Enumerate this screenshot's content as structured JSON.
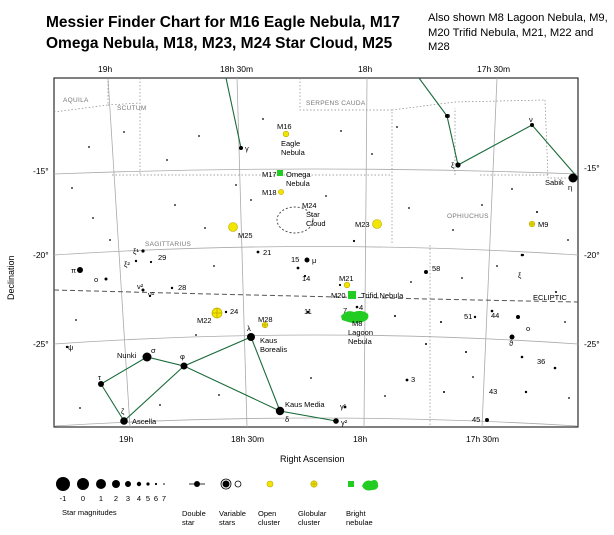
{
  "title": "Messier Finder Chart for M16 Eagle Nebula, M17 Omega Nebula, M18, M23, M24 Star Cloud, M25",
  "also_shown": "Also shown M8 Lagoon Nebula, M9, M20 Trifid Nebula, M21, M22 and M28",
  "axes": {
    "ra_label": "Right Ascension",
    "dec_label": "Declination",
    "ra_ticks": [
      "19h",
      "18h 30m",
      "18h",
      "17h 30m"
    ],
    "dec_ticks": [
      "-15°",
      "-20°",
      "-25°"
    ]
  },
  "constellations": [
    "AQUILA",
    "SCUTUM",
    "SERPENS CAUDA",
    "OPHIUCHUS",
    "SAGITTARIUS"
  ],
  "ecliptic_label": "ECLIPTIC",
  "objects": [
    {
      "id": "M16",
      "label": "M16",
      "desc": "Eagle Nebula",
      "type": "open-cluster-nebula"
    },
    {
      "id": "M17",
      "label": "M17",
      "desc": "Omega Nebula",
      "type": "bright-nebula"
    },
    {
      "id": "M18",
      "label": "M18",
      "desc": "",
      "type": "open-cluster"
    },
    {
      "id": "M24",
      "label": "M24",
      "desc": "Star Cloud",
      "type": "star-cloud"
    },
    {
      "id": "M25",
      "label": "M25",
      "desc": "",
      "type": "open-cluster"
    },
    {
      "id": "M23",
      "label": "M23",
      "desc": "",
      "type": "open-cluster"
    },
    {
      "id": "M9",
      "label": "M9",
      "desc": "",
      "type": "globular-cluster"
    },
    {
      "id": "M21",
      "label": "M21",
      "desc": "",
      "type": "open-cluster"
    },
    {
      "id": "M20",
      "label": "M20",
      "desc": "Trifid Nebula",
      "type": "bright-nebula"
    },
    {
      "id": "M8",
      "label": "M8",
      "desc": "Lagoon Nebula",
      "type": "bright-nebula"
    },
    {
      "id": "M22",
      "label": "M22",
      "desc": "",
      "type": "globular-cluster"
    },
    {
      "id": "M28",
      "label": "M28",
      "desc": "",
      "type": "globular-cluster"
    }
  ],
  "star_labels": {
    "nunki": "Nunki",
    "ascella": "Ascella",
    "kaus_borealis": "Kaus Borealis",
    "kaus_media": "Kaus Media",
    "sabik": "Sabik",
    "sigma": "σ",
    "phi": "φ",
    "lambda": "λ",
    "tau": "τ",
    "zeta": "ζ",
    "delta": "δ",
    "gamma1": "γ¹",
    "gamma2": "γ²",
    "gamma": "γ",
    "nu": "ν",
    "omicron": "ο",
    "xi": "ξ",
    "eta": "η",
    "mu": "μ",
    "pi": "π",
    "omicron_sgr": "o",
    "xi1": "ξ¹",
    "xi2": "ξ²",
    "nu2": "ν²",
    "nu1": "ν¹",
    "psi": "ψ",
    "xi_oph": "ξ",
    "omicron_oph": "o",
    "theta_oph": "ϑ",
    "n29": "29",
    "n28": "28",
    "n21": "21",
    "n15": "15",
    "n14": "14",
    "n11": "11",
    "n24": "24",
    "n58": "58",
    "n51": "51",
    "n44": "44",
    "n36": "36",
    "n43": "43",
    "n45": "45",
    "n3": "3",
    "n4": "4",
    "n7": "7"
  },
  "legend": {
    "magnitudes": [
      "-1",
      "0",
      "1",
      "2",
      "3",
      "4",
      "5",
      "6",
      "7"
    ],
    "magnitudes_label": "Star magnitudes",
    "double_star": "Double star",
    "variable_stars": "Variable stars",
    "open_cluster": "Open cluster",
    "globular_cluster": "Globular cluster",
    "bright_nebulae": "Bright nebulae"
  },
  "colors": {
    "nebula_green": "#22cc22",
    "cluster_yellow": "#f2e600",
    "frame": "#000000",
    "grid": "#999999"
  }
}
